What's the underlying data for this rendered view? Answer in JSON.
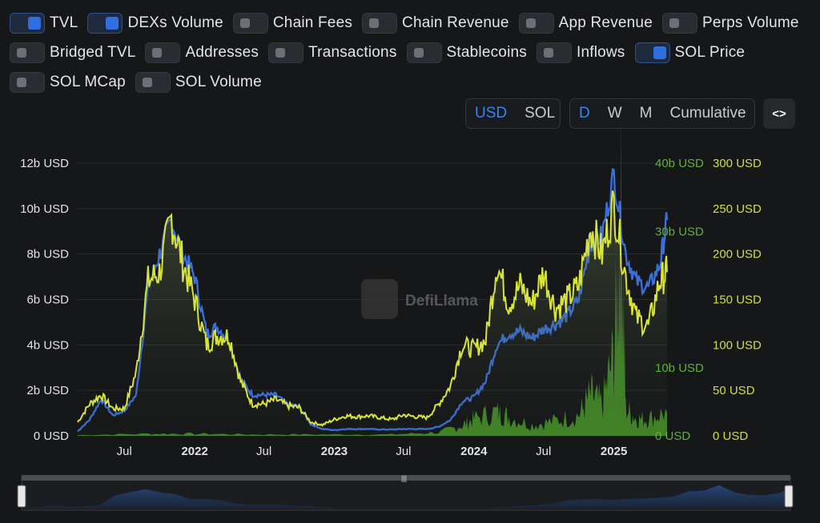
{
  "toggles": [
    {
      "label": "TVL",
      "on": true
    },
    {
      "label": "DEXs Volume",
      "on": true
    },
    {
      "label": "Chain Fees",
      "on": false
    },
    {
      "label": "Chain Revenue",
      "on": false
    },
    {
      "label": "App Revenue",
      "on": false
    },
    {
      "label": "Perps Volume",
      "on": false
    },
    {
      "label": "Bridged TVL",
      "on": false
    },
    {
      "label": "Addresses",
      "on": false
    },
    {
      "label": "Transactions",
      "on": false
    },
    {
      "label": "Stablecoins",
      "on": false
    },
    {
      "label": "Inflows",
      "on": false
    },
    {
      "label": "SOL Price",
      "on": true
    },
    {
      "label": "SOL MCap",
      "on": false
    },
    {
      "label": "SOL Volume",
      "on": false
    }
  ],
  "currency": {
    "options": [
      "USD",
      "SOL"
    ],
    "active": "USD"
  },
  "granularity": {
    "options": [
      "D",
      "W",
      "M",
      "Cumulative"
    ],
    "active": "D"
  },
  "embed_icon": "code-brackets-icon",
  "watermark": "DefiLlama",
  "colors": {
    "tvl": "#3b6fd8",
    "price": "#d8e43a",
    "volume": "#4a9a2a",
    "volume_axis": "#5db33a",
    "price_axis": "#d4df3c",
    "accent": "#3b82f6"
  },
  "chart_data": {
    "type": "line",
    "x_ticks": [
      "Jul",
      "2022",
      "Jul",
      "2023",
      "Jul",
      "2024",
      "Jul",
      "2025"
    ],
    "x_tick_dates": [
      "2021-07-01",
      "2022-01-01",
      "2022-07-01",
      "2023-01-01",
      "2023-07-01",
      "2024-01-01",
      "2024-07-01",
      "2025-01-01"
    ],
    "y_left_ticks": [
      "0 USD",
      "2b USD",
      "4b USD",
      "6b USD",
      "8b USD",
      "10b USD",
      "12b USD"
    ],
    "y_left_range": [
      0,
      12
    ],
    "y_mid_ticks": [
      "0 USD",
      "10b USD",
      "",
      "30b USD",
      "40b USD"
    ],
    "y_mid_range": [
      0,
      40
    ],
    "y_right_ticks": [
      "0 USD",
      "50 USD",
      "100 USD",
      "150 USD",
      "200 USD",
      "250 USD",
      "300 USD"
    ],
    "y_right_range": [
      0,
      300
    ],
    "series": [
      {
        "name": "TVL",
        "axis": "left",
        "unit": "b USD",
        "points": [
          [
            "2021-03-01",
            0.2
          ],
          [
            "2021-04-01",
            0.7
          ],
          [
            "2021-05-01",
            1.6
          ],
          [
            "2021-06-01",
            0.9
          ],
          [
            "2021-07-01",
            1.1
          ],
          [
            "2021-08-01",
            1.8
          ],
          [
            "2021-09-01",
            6.5
          ],
          [
            "2021-10-01",
            8.0
          ],
          [
            "2021-11-01",
            9.5
          ],
          [
            "2021-12-01",
            8.0
          ],
          [
            "2022-01-01",
            7.0
          ],
          [
            "2022-02-01",
            4.5
          ],
          [
            "2022-03-01",
            4.8
          ],
          [
            "2022-04-01",
            4.2
          ],
          [
            "2022-05-01",
            2.5
          ],
          [
            "2022-06-01",
            1.8
          ],
          [
            "2022-07-01",
            1.8
          ],
          [
            "2022-08-01",
            1.8
          ],
          [
            "2022-09-01",
            1.4
          ],
          [
            "2022-10-01",
            1.3
          ],
          [
            "2022-11-01",
            0.5
          ],
          [
            "2022-12-01",
            0.3
          ],
          [
            "2023-01-01",
            0.25
          ],
          [
            "2023-02-01",
            0.3
          ],
          [
            "2023-03-01",
            0.3
          ],
          [
            "2023-04-01",
            0.3
          ],
          [
            "2023-05-01",
            0.28
          ],
          [
            "2023-06-01",
            0.28
          ],
          [
            "2023-07-01",
            0.3
          ],
          [
            "2023-08-01",
            0.3
          ],
          [
            "2023-09-01",
            0.3
          ],
          [
            "2023-10-01",
            0.4
          ],
          [
            "2023-11-01",
            0.7
          ],
          [
            "2023-12-01",
            1.5
          ],
          [
            "2024-01-01",
            1.7
          ],
          [
            "2024-02-01",
            2.4
          ],
          [
            "2024-03-01",
            4.0
          ],
          [
            "2024-04-01",
            4.5
          ],
          [
            "2024-05-01",
            4.6
          ],
          [
            "2024-06-01",
            4.3
          ],
          [
            "2024-07-01",
            4.7
          ],
          [
            "2024-08-01",
            4.9
          ],
          [
            "2024-09-01",
            5.3
          ],
          [
            "2024-10-01",
            6.0
          ],
          [
            "2024-11-01",
            8.5
          ],
          [
            "2024-12-01",
            8.8
          ],
          [
            "2025-01-01",
            11.5
          ],
          [
            "2025-02-01",
            8.0
          ],
          [
            "2025-03-01",
            6.8
          ],
          [
            "2025-04-01",
            6.5
          ],
          [
            "2025-05-01",
            7.5
          ],
          [
            "2025-05-20",
            9.5
          ]
        ]
      },
      {
        "name": "SOL Price",
        "axis": "right",
        "unit": "USD",
        "points": [
          [
            "2021-03-01",
            15
          ],
          [
            "2021-04-01",
            35
          ],
          [
            "2021-05-01",
            45
          ],
          [
            "2021-06-01",
            30
          ],
          [
            "2021-07-01",
            30
          ],
          [
            "2021-08-01",
            70
          ],
          [
            "2021-09-01",
            170
          ],
          [
            "2021-10-01",
            180
          ],
          [
            "2021-11-01",
            240
          ],
          [
            "2021-12-01",
            190
          ],
          [
            "2022-01-01",
            150
          ],
          [
            "2022-02-01",
            100
          ],
          [
            "2022-03-01",
            110
          ],
          [
            "2022-04-01",
            110
          ],
          [
            "2022-05-01",
            60
          ],
          [
            "2022-06-01",
            35
          ],
          [
            "2022-07-01",
            35
          ],
          [
            "2022-08-01",
            40
          ],
          [
            "2022-09-01",
            33
          ],
          [
            "2022-10-01",
            31
          ],
          [
            "2022-11-01",
            15
          ],
          [
            "2022-12-01",
            12
          ],
          [
            "2023-01-01",
            18
          ],
          [
            "2023-02-01",
            22
          ],
          [
            "2023-03-01",
            21
          ],
          [
            "2023-04-01",
            22
          ],
          [
            "2023-05-01",
            20
          ],
          [
            "2023-06-01",
            18
          ],
          [
            "2023-07-01",
            23
          ],
          [
            "2023-08-01",
            21
          ],
          [
            "2023-09-01",
            20
          ],
          [
            "2023-10-01",
            35
          ],
          [
            "2023-11-01",
            55
          ],
          [
            "2023-12-01",
            100
          ],
          [
            "2024-01-01",
            95
          ],
          [
            "2024-02-01",
            105
          ],
          [
            "2024-03-01",
            190
          ],
          [
            "2024-04-01",
            145
          ],
          [
            "2024-05-01",
            165
          ],
          [
            "2024-06-01",
            145
          ],
          [
            "2024-07-01",
            180
          ],
          [
            "2024-08-01",
            140
          ],
          [
            "2024-09-01",
            150
          ],
          [
            "2024-10-01",
            165
          ],
          [
            "2024-11-01",
            230
          ],
          [
            "2024-12-01",
            200
          ],
          [
            "2025-01-01",
            255
          ],
          [
            "2025-02-01",
            175
          ],
          [
            "2025-03-01",
            130
          ],
          [
            "2025-04-01",
            120
          ],
          [
            "2025-05-01",
            170
          ],
          [
            "2025-05-20",
            180
          ]
        ]
      },
      {
        "name": "DEXs Volume",
        "axis": "mid",
        "unit": "b USD",
        "points": [
          [
            "2021-03-01",
            0.1
          ],
          [
            "2021-09-01",
            0.3
          ],
          [
            "2022-01-01",
            0.3
          ],
          [
            "2022-06-01",
            0.2
          ],
          [
            "2022-12-01",
            0.2
          ],
          [
            "2023-06-01",
            0.2
          ],
          [
            "2023-10-01",
            0.5
          ],
          [
            "2023-12-01",
            1.5
          ],
          [
            "2024-01-01",
            2.5
          ],
          [
            "2024-03-01",
            3.5
          ],
          [
            "2024-04-01",
            2.8
          ],
          [
            "2024-06-01",
            1.6
          ],
          [
            "2024-08-01",
            2.2
          ],
          [
            "2024-10-01",
            3.0
          ],
          [
            "2024-11-01",
            6.0
          ],
          [
            "2024-12-01",
            4.5
          ],
          [
            "2025-01-01",
            12.0
          ],
          [
            "2025-01-20",
            30.0
          ],
          [
            "2025-02-01",
            4.0
          ],
          [
            "2025-03-01",
            2.5
          ],
          [
            "2025-04-01",
            2.5
          ],
          [
            "2025-05-20",
            3.5
          ]
        ]
      }
    ],
    "grid": true,
    "legend": "top toggles"
  }
}
